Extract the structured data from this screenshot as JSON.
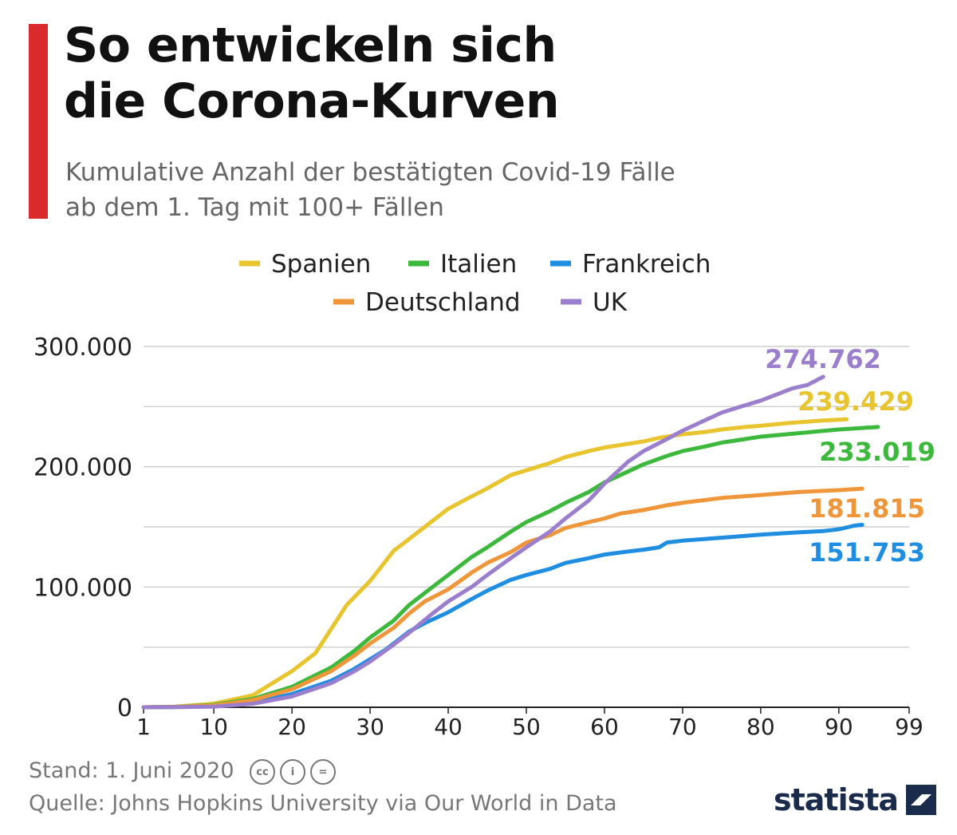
{
  "header": {
    "title_line1": "So entwickeln sich",
    "title_line2": "die Corona-Kurven",
    "subtitle_line1": "Kumulative Anzahl der bestätigten Covid-19 Fälle",
    "subtitle_line2": "ab dem 1. Tag mit 100+ Fällen",
    "accent_color": "#d92b2b"
  },
  "footer": {
    "stand": "Stand: 1. Juni 2020",
    "source": "Quelle: Johns Hopkins University via Our World in Data",
    "license_icons": [
      "cc-icon",
      "by-icon",
      "nd-icon"
    ],
    "license_labels": [
      "cc",
      "i",
      "="
    ],
    "logo_text": "statista",
    "logo_color": "#1b2b4b"
  },
  "chart_data": {
    "type": "line",
    "title": "So entwickeln sich die Corona-Kurven",
    "xlabel": "",
    "ylabel": "",
    "xlim": [
      1,
      99
    ],
    "ylim": [
      0,
      300000
    ],
    "x_ticks": [
      1,
      10,
      20,
      30,
      40,
      50,
      60,
      70,
      80,
      90,
      99
    ],
    "y_ticks": [
      0,
      100000,
      200000,
      300000
    ],
    "y_tick_labels": [
      "0",
      "100.000",
      "200.000",
      "300.000"
    ],
    "grid": true,
    "legend_position": "top",
    "series": [
      {
        "name": "Spanien",
        "color": "#e8c42e",
        "end_label": "239.429",
        "end_value": 239429,
        "points": [
          [
            1,
            0
          ],
          [
            5,
            500
          ],
          [
            10,
            3000
          ],
          [
            15,
            10000
          ],
          [
            20,
            30000
          ],
          [
            23,
            45000
          ],
          [
            25,
            65000
          ],
          [
            27,
            85000
          ],
          [
            30,
            105000
          ],
          [
            33,
            130000
          ],
          [
            35,
            140000
          ],
          [
            38,
            155000
          ],
          [
            40,
            165000
          ],
          [
            42,
            172000
          ],
          [
            45,
            182000
          ],
          [
            48,
            193000
          ],
          [
            50,
            197000
          ],
          [
            53,
            203000
          ],
          [
            55,
            208000
          ],
          [
            58,
            213000
          ],
          [
            60,
            216000
          ],
          [
            63,
            219000
          ],
          [
            65,
            221000
          ],
          [
            67,
            224000
          ],
          [
            70,
            227000
          ],
          [
            73,
            229000
          ],
          [
            75,
            231000
          ],
          [
            78,
            233000
          ],
          [
            80,
            234000
          ],
          [
            83,
            236000
          ],
          [
            85,
            237000
          ],
          [
            88,
            238500
          ],
          [
            91,
            239429
          ]
        ]
      },
      {
        "name": "Italien",
        "color": "#3cb93c",
        "end_label": "233.019",
        "end_value": 233019,
        "points": [
          [
            1,
            0
          ],
          [
            5,
            300
          ],
          [
            10,
            2000
          ],
          [
            15,
            7000
          ],
          [
            20,
            17000
          ],
          [
            25,
            33000
          ],
          [
            28,
            47000
          ],
          [
            30,
            58000
          ],
          [
            33,
            72000
          ],
          [
            35,
            85000
          ],
          [
            38,
            100000
          ],
          [
            40,
            110000
          ],
          [
            43,
            125000
          ],
          [
            45,
            133000
          ],
          [
            48,
            146000
          ],
          [
            50,
            154000
          ],
          [
            53,
            163000
          ],
          [
            55,
            170000
          ],
          [
            58,
            179000
          ],
          [
            60,
            187000
          ],
          [
            63,
            196000
          ],
          [
            65,
            202000
          ],
          [
            68,
            209000
          ],
          [
            70,
            213000
          ],
          [
            73,
            217000
          ],
          [
            75,
            220000
          ],
          [
            78,
            223000
          ],
          [
            80,
            225000
          ],
          [
            85,
            228000
          ],
          [
            90,
            231000
          ],
          [
            95,
            233019
          ]
        ]
      },
      {
        "name": "Frankreich",
        "color": "#1f8de0",
        "end_label": "151.753",
        "end_value": 151753,
        "points": [
          [
            1,
            0
          ],
          [
            5,
            200
          ],
          [
            10,
            1000
          ],
          [
            15,
            4000
          ],
          [
            20,
            11000
          ],
          [
            25,
            22000
          ],
          [
            28,
            32000
          ],
          [
            30,
            40000
          ],
          [
            32,
            48000
          ],
          [
            35,
            63000
          ],
          [
            37,
            70000
          ],
          [
            40,
            79000
          ],
          [
            43,
            90000
          ],
          [
            45,
            97000
          ],
          [
            48,
            106000
          ],
          [
            50,
            110000
          ],
          [
            53,
            115000
          ],
          [
            55,
            120000
          ],
          [
            58,
            124000
          ],
          [
            60,
            127000
          ],
          [
            63,
            129500
          ],
          [
            65,
            131000
          ],
          [
            67,
            133000
          ],
          [
            68,
            137000
          ],
          [
            70,
            138500
          ],
          [
            75,
            141000
          ],
          [
            80,
            143500
          ],
          [
            85,
            145500
          ],
          [
            88,
            146500
          ],
          [
            90,
            148000
          ],
          [
            92,
            151000
          ],
          [
            93,
            151753
          ]
        ]
      },
      {
        "name": "Deutschland",
        "color": "#f0963a",
        "end_label": "181.815",
        "end_value": 181815,
        "points": [
          [
            1,
            0
          ],
          [
            5,
            300
          ],
          [
            10,
            1500
          ],
          [
            15,
            6000
          ],
          [
            20,
            15000
          ],
          [
            25,
            30000
          ],
          [
            28,
            43000
          ],
          [
            30,
            53000
          ],
          [
            33,
            66000
          ],
          [
            35,
            78000
          ],
          [
            37,
            88000
          ],
          [
            40,
            98000
          ],
          [
            43,
            112000
          ],
          [
            45,
            120000
          ],
          [
            48,
            129000
          ],
          [
            50,
            137000
          ],
          [
            53,
            143000
          ],
          [
            55,
            149000
          ],
          [
            58,
            154000
          ],
          [
            60,
            157000
          ],
          [
            62,
            161000
          ],
          [
            65,
            164000
          ],
          [
            68,
            168000
          ],
          [
            70,
            170000
          ],
          [
            75,
            174000
          ],
          [
            80,
            176500
          ],
          [
            85,
            179000
          ],
          [
            90,
            180500
          ],
          [
            93,
            181815
          ]
        ]
      },
      {
        "name": "UK",
        "color": "#9b7fcc",
        "end_label": "274.762",
        "end_value": 274762,
        "points": [
          [
            1,
            0
          ],
          [
            5,
            100
          ],
          [
            10,
            500
          ],
          [
            15,
            3000
          ],
          [
            20,
            9000
          ],
          [
            25,
            20000
          ],
          [
            28,
            30000
          ],
          [
            30,
            38000
          ],
          [
            33,
            52000
          ],
          [
            35,
            62000
          ],
          [
            38,
            78000
          ],
          [
            40,
            88000
          ],
          [
            43,
            100000
          ],
          [
            45,
            110000
          ],
          [
            48,
            124000
          ],
          [
            50,
            133000
          ],
          [
            53,
            146000
          ],
          [
            55,
            157000
          ],
          [
            58,
            172000
          ],
          [
            60,
            186000
          ],
          [
            63,
            204000
          ],
          [
            65,
            213000
          ],
          [
            68,
            223000
          ],
          [
            70,
            230000
          ],
          [
            73,
            239000
          ],
          [
            75,
            245000
          ],
          [
            77,
            249000
          ],
          [
            80,
            255000
          ],
          [
            82,
            260000
          ],
          [
            84,
            265000
          ],
          [
            86,
            268000
          ],
          [
            88,
            274762
          ]
        ]
      }
    ]
  }
}
